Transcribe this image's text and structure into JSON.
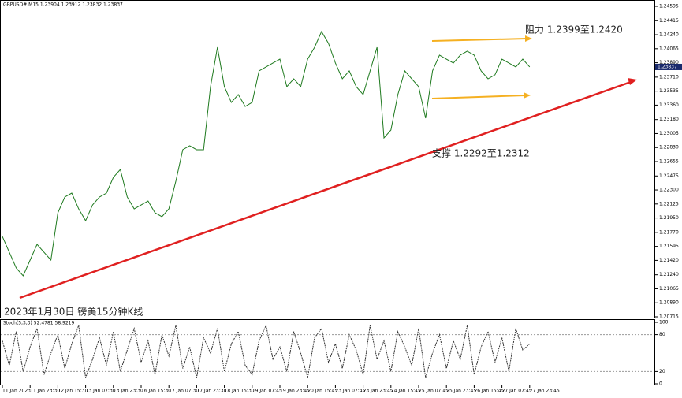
{
  "chart_data": [
    {
      "type": "line",
      "title": "GBPUSD#,M15  1.23904 1.23912 1.23832 1.23837",
      "annotations": [
        "阻力 1.2399至1.2420",
        "支撑 1.2292至1.2312",
        "2023年1月30日 镑美15分钟K线"
      ],
      "last_price": 1.23837,
      "categories": [
        "11 Jan 2023",
        null,
        null,
        null,
        "11 Jan 23:30",
        null,
        null,
        null,
        "12 Jan 15:30",
        null,
        null,
        null,
        "13 Jan 07:30",
        null,
        null,
        null,
        "13 Jan 23:30",
        null,
        null,
        null,
        "16 Jan 15:30",
        null,
        null,
        null,
        "17 Jan 07:30",
        null,
        null,
        null,
        "17 Jan 23:30",
        null,
        null,
        null,
        "18 Jan 15:30",
        null,
        null,
        null,
        "19 Jan 07:45",
        null,
        null,
        null,
        "19 Jan 23:45",
        null,
        null,
        null,
        "20 Jan 15:45",
        null,
        null,
        null,
        "23 Jan 07:45",
        null,
        null,
        null,
        "23 Jan 23:45",
        null,
        null,
        null,
        "24 Jan 15:45",
        null,
        null,
        null,
        "25 Jan 07:45",
        null,
        null,
        null,
        "25 Jan 23:45",
        null,
        null,
        null,
        "26 Jan 15:45",
        null,
        null,
        null,
        "27 Jan 07:45",
        null,
        null,
        null,
        "27 Jan 23:45"
      ],
      "series": [
        {
          "color": "#1f7a1f",
          "values": [
            1.21719,
            1.21522,
            1.21325,
            1.21227,
            1.21424,
            1.21621,
            1.21522,
            1.21424,
            1.22015,
            1.22212,
            1.22261,
            1.22064,
            1.21916,
            1.22113,
            1.22212,
            1.22261,
            1.22458,
            1.22556,
            1.22212,
            1.22064,
            1.22113,
            1.22162,
            1.22015,
            1.21966,
            1.22064,
            1.22409,
            1.22803,
            1.22852,
            1.22803,
            1.22803,
            1.23591,
            1.24083,
            1.23591,
            1.23394,
            1.23492,
            1.23344,
            1.23394,
            1.23788,
            1.23837,
            1.23886,
            1.23935,
            1.23591,
            1.23689,
            1.23591,
            1.23935,
            1.24083,
            1.2428,
            1.24132,
            1.23886,
            1.23689,
            1.23788,
            1.23591,
            1.23492,
            1.23788,
            1.24083,
            1.2295,
            1.23049,
            1.23492,
            1.23788,
            1.23689,
            1.23591,
            1.23197,
            1.23788,
            1.23985,
            1.23935,
            1.23886,
            1.23985,
            1.24034,
            1.23985,
            1.23788,
            1.23689,
            1.23739,
            1.23935,
            1.23886,
            1.23837,
            1.23935,
            1.23837
          ]
        }
      ],
      "ylim": [
        1.20715,
        1.24595
      ],
      "yticks": [
        1.24595,
        1.24415,
        {
          "value": 1.2424,
          "label": "1.24240"
        },
        1.24065,
        {
          "value": 1.2389,
          "label": "1.23890"
        },
        {
          "value": 1.2371,
          "label": "1.23710"
        },
        1.23535,
        {
          "value": 1.2336,
          "label": "1.23360"
        },
        {
          "value": 1.2318,
          "label": "1.23180"
        },
        1.23005,
        {
          "value": 1.2283,
          "label": "1.22830"
        },
        1.22655,
        1.22475,
        {
          "value": 1.223,
          "label": "1.22300"
        },
        1.22125,
        {
          "value": 1.2195,
          "label": "1.21950"
        },
        {
          "value": 1.2177,
          "label": "1.21770"
        },
        1.21595,
        {
          "value": 1.2142,
          "label": "1.21420"
        },
        {
          "value": 1.2124,
          "label": "1.21240"
        },
        1.21065,
        {
          "value": 1.2089,
          "label": "1.20890"
        },
        1.20715
      ]
    },
    {
      "type": "line",
      "title": "Stoch(5,3,3) 52.4781 58.9219",
      "series": [
        {
          "color": "#333333",
          "values": [
            70,
            30,
            85,
            20,
            60,
            90,
            15,
            50,
            80,
            25,
            65,
            95,
            10,
            40,
            75,
            30,
            85,
            20,
            55,
            90,
            35,
            70,
            15,
            80,
            45,
            95,
            25,
            60,
            10,
            75,
            50,
            90,
            20,
            65,
            85,
            30,
            15,
            70,
            95,
            40,
            60,
            20,
            85,
            50,
            10,
            75,
            90,
            35,
            65,
            25,
            80,
            55,
            15,
            95,
            40,
            70,
            20,
            85,
            60,
            30,
            90,
            10,
            50,
            80,
            25,
            70,
            40,
            95,
            15,
            60,
            85,
            35,
            75,
            20,
            90,
            55,
            65
          ]
        }
      ],
      "ylim": [
        0,
        100
      ],
      "yticks": [
        100,
        80,
        20,
        0
      ]
    }
  ]
}
